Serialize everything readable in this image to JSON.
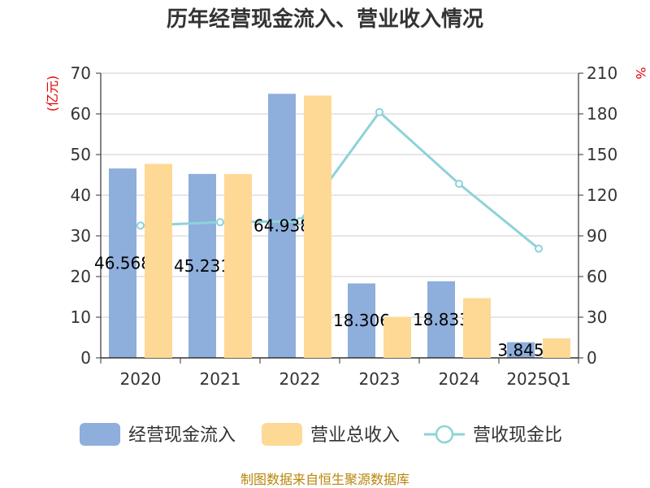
{
  "chart_data": {
    "type": "bar",
    "title": "历年经营现金流入、营业收入情况",
    "categories": [
      "2020",
      "2021",
      "2022",
      "2023",
      "2024",
      "2025Q1"
    ],
    "series": [
      {
        "name": "经营现金流入",
        "type": "bar",
        "axis": "left",
        "color": "#8eaedc",
        "values": [
          46.568,
          45.231,
          64.938,
          18.306,
          18.833,
          3.845
        ],
        "labels": [
          "46.568",
          "45.231",
          "64.938",
          "18.306",
          "18.833",
          "3.845"
        ]
      },
      {
        "name": "营业总收入",
        "type": "bar",
        "axis": "left",
        "color": "#fed995",
        "values": [
          47.7,
          45.2,
          64.5,
          10.1,
          14.7,
          4.8
        ]
      },
      {
        "name": "营收现金比",
        "type": "line",
        "axis": "right",
        "color": "#8dd3d8",
        "values": [
          97.6,
          100.1,
          100.7,
          181.3,
          128.4,
          80.6
        ]
      }
    ],
    "y_left": {
      "label": "(亿元)",
      "ylim": [
        0,
        70
      ],
      "ticks": [
        "0",
        "10",
        "20",
        "30",
        "40",
        "50",
        "60",
        "70"
      ]
    },
    "y_right": {
      "label": "%",
      "ylim": [
        0,
        210
      ],
      "ticks": [
        "0",
        "30",
        "60",
        "90",
        "120",
        "150",
        "180",
        "210"
      ]
    },
    "grid": true,
    "legend_position": "bottom"
  },
  "source": "制图数据来自恒生聚源数据库"
}
